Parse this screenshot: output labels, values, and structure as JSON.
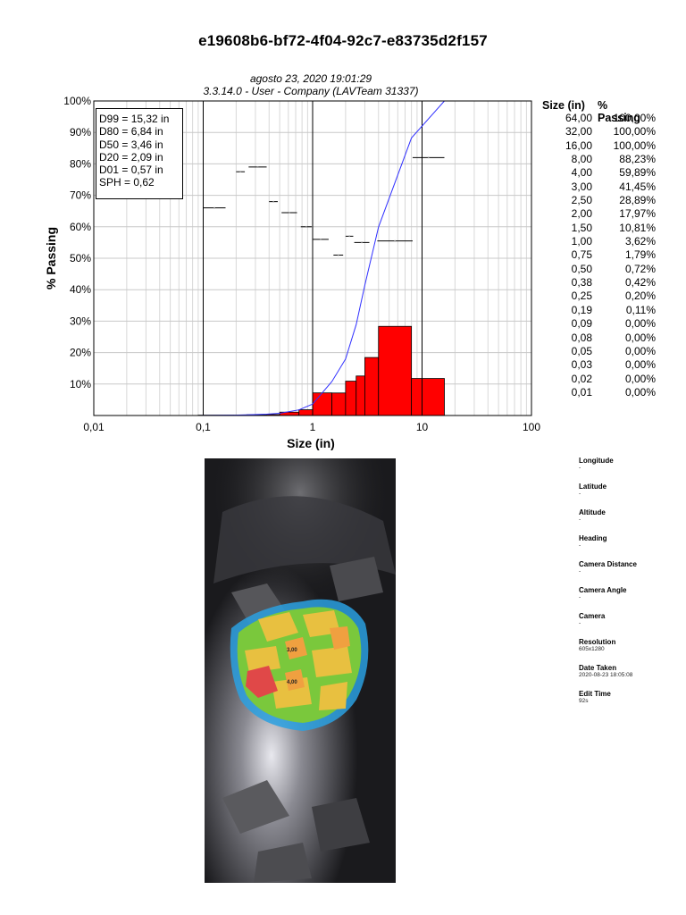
{
  "report": {
    "title": "e19608b6-bf72-4f04-92c7-e83735d2f157",
    "date_line": "agosto 23, 2020 19:01:29",
    "version_line": "3.3.14.0  -  User - Company (LAVTeam 31337)"
  },
  "stats": [
    "D99 = 15,32 in",
    "D80 = 6,84 in",
    "D50 = 3,46 in",
    "D20 = 2,09 in",
    "D01 = 0,57 in",
    "SPH = 0,62"
  ],
  "chart_data": {
    "type": "bar",
    "xlabel": "Size (in)",
    "ylabel": "% Passing",
    "x_scale": "log",
    "xlim": [
      0.01,
      100
    ],
    "ylim": [
      0,
      100
    ],
    "x_tick_labels": [
      "0,01",
      "0,1",
      "1",
      "10",
      "100"
    ],
    "y_tick_labels": [
      "10%",
      "20%",
      "30%",
      "40%",
      "50%",
      "60%",
      "70%",
      "80%",
      "90%",
      "100%"
    ],
    "grid": true,
    "histogram_bars": [
      {
        "x0": 0.09,
        "x1": 0.19,
        "value": 0.11
      },
      {
        "x0": 0.19,
        "x1": 0.25,
        "value": 0.09
      },
      {
        "x0": 0.25,
        "x1": 0.38,
        "value": 0.22
      },
      {
        "x0": 0.38,
        "x1": 0.5,
        "value": 0.3
      },
      {
        "x0": 0.5,
        "x1": 0.75,
        "value": 1.07
      },
      {
        "x0": 0.75,
        "x1": 1.0,
        "value": 1.83
      },
      {
        "x0": 1.0,
        "x1": 1.5,
        "value": 7.19
      },
      {
        "x0": 1.5,
        "x1": 2.0,
        "value": 7.16
      },
      {
        "x0": 2.0,
        "x1": 2.5,
        "value": 10.92
      },
      {
        "x0": 2.5,
        "x1": 3.0,
        "value": 12.56
      },
      {
        "x0": 3.0,
        "x1": 4.0,
        "value": 18.44
      },
      {
        "x0": 4.0,
        "x1": 8.0,
        "value": 28.34
      },
      {
        "x0": 8.0,
        "x1": 16.0,
        "value": 11.77
      }
    ],
    "cumulative_curve": {
      "x": [
        0.01,
        0.09,
        0.19,
        0.25,
        0.38,
        0.5,
        0.75,
        1.0,
        1.5,
        2.0,
        2.5,
        3.0,
        4.0,
        8.0,
        16.0,
        32.0,
        64.0
      ],
      "y": [
        0,
        0,
        0.11,
        0.2,
        0.42,
        0.72,
        1.79,
        3.62,
        10.81,
        17.97,
        28.89,
        41.45,
        59.89,
        88.23,
        100,
        100,
        100
      ]
    },
    "markers": [
      {
        "x0": 0.1,
        "x1": 0.16,
        "y": 66
      },
      {
        "x0": 0.2,
        "x1": 0.24,
        "y": 77.5
      },
      {
        "x0": 0.26,
        "x1": 0.38,
        "y": 79
      },
      {
        "x0": 0.4,
        "x1": 0.48,
        "y": 68
      },
      {
        "x0": 0.52,
        "x1": 0.72,
        "y": 64.5
      },
      {
        "x0": 0.78,
        "x1": 0.98,
        "y": 60
      },
      {
        "x0": 1.0,
        "x1": 1.4,
        "y": 56
      },
      {
        "x0": 1.55,
        "x1": 1.9,
        "y": 51
      },
      {
        "x0": 2.0,
        "x1": 2.35,
        "y": 57
      },
      {
        "x0": 2.4,
        "x1": 3.3,
        "y": 55
      },
      {
        "x0": 3.9,
        "x1": 8.2,
        "y": 55.5
      },
      {
        "x0": 8.2,
        "x1": 16.0,
        "y": 82
      }
    ],
    "vertical_lines": [
      0.1,
      1,
      10
    ],
    "bar_color": "#ff0000",
    "curve_color": "#3030ff"
  },
  "size_table": {
    "headers": [
      "Size (in)",
      "% Passing"
    ],
    "rows": [
      [
        "64,00",
        "100,00%"
      ],
      [
        "32,00",
        "100,00%"
      ],
      [
        "16,00",
        "100,00%"
      ],
      [
        "8,00",
        "88,23%"
      ],
      [
        "4,00",
        "59,89%"
      ],
      [
        "3,00",
        "41,45%"
      ],
      [
        "2,50",
        "28,89%"
      ],
      [
        "2,00",
        "17,97%"
      ],
      [
        "1,50",
        "10,81%"
      ],
      [
        "1,00",
        "3,62%"
      ],
      [
        "0,75",
        "1,79%"
      ],
      [
        "0,50",
        "0,72%"
      ],
      [
        "0,38",
        "0,42%"
      ],
      [
        "0,25",
        "0,20%"
      ],
      [
        "0,19",
        "0,11%"
      ],
      [
        "0,09",
        "0,00%"
      ],
      [
        "0,08",
        "0,00%"
      ],
      [
        "0,05",
        "0,00%"
      ],
      [
        "0,03",
        "0,00%"
      ],
      [
        "0,02",
        "0,00%"
      ],
      [
        "0,01",
        "0,00%"
      ]
    ]
  },
  "photo": {
    "particle_labels": [
      "3,00",
      "4,00"
    ],
    "overlay_colors": [
      "#e8c040",
      "#7ac83c",
      "#2aa0e0",
      "#e04848",
      "#f0a040"
    ]
  },
  "metadata": [
    {
      "label": "Longitude",
      "value": "-"
    },
    {
      "label": "Latitude",
      "value": "-"
    },
    {
      "label": "Altitude",
      "value": "-"
    },
    {
      "label": "Heading",
      "value": "-"
    },
    {
      "label": "Camera Distance",
      "value": "-"
    },
    {
      "label": "Camera Angle",
      "value": "-"
    },
    {
      "label": "Camera",
      "value": "-"
    },
    {
      "label": "Resolution",
      "value": "605x1280"
    },
    {
      "label": "Date Taken",
      "value": "2020-08-23 18:05:08"
    },
    {
      "label": "Edit Time",
      "value": "92s"
    }
  ]
}
